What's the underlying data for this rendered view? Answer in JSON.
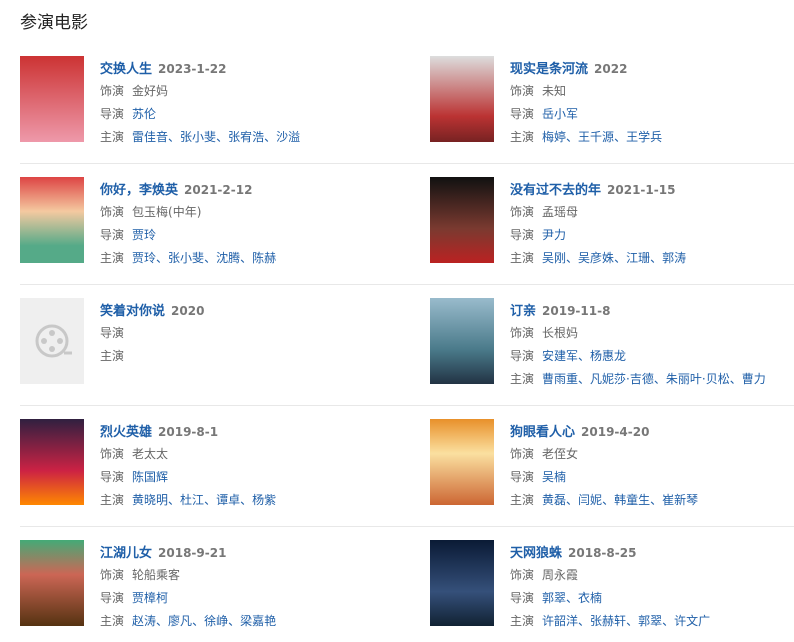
{
  "header": {
    "title": "参演电影"
  },
  "labels": {
    "role": "饰演",
    "director": "导演",
    "cast": "主演",
    "separator": "、"
  },
  "movies": [
    {
      "title": "交换人生",
      "date": "2023-1-22",
      "role": "金好妈",
      "directors": [
        "苏伦"
      ],
      "cast": [
        "雷佳音",
        "张小斐",
        "张宥浩",
        "沙溢"
      ]
    },
    {
      "title": "现实是条河流",
      "date": "2022",
      "role": "未知",
      "directors": [
        "岳小军"
      ],
      "cast": [
        "梅婷",
        "王千源",
        "王学兵"
      ]
    },
    {
      "title": "你好，李焕英",
      "date": "2021-2-12",
      "role": "包玉梅(中年)",
      "directors": [
        "贾玲"
      ],
      "cast": [
        "贾玲",
        "张小斐",
        "沈腾",
        "陈赫"
      ]
    },
    {
      "title": "没有过不去的年",
      "date": "2021-1-15",
      "role": "孟瑶母",
      "directors": [
        "尹力"
      ],
      "cast": [
        "吴刚",
        "吴彦姝",
        "江珊",
        "郭涛"
      ]
    },
    {
      "title": "笑着对你说",
      "date": "2020",
      "directors": [],
      "cast": []
    },
    {
      "title": "订亲",
      "date": "2019-11-8",
      "role": "长根妈",
      "directors": [
        "安建军",
        "杨惠龙"
      ],
      "cast": [
        "曹雨重",
        "凡妮莎·吉德",
        "朱丽叶·贝松",
        "曹力"
      ]
    },
    {
      "title": "烈火英雄",
      "date": "2019-8-1",
      "role": "老太太",
      "directors": [
        "陈国辉"
      ],
      "cast": [
        "黄晓明",
        "杜江",
        "谭卓",
        "杨紫"
      ]
    },
    {
      "title": "狗眼看人心",
      "date": "2019-4-20",
      "role": "老侄女",
      "directors": [
        "吴楠"
      ],
      "cast": [
        "黄磊",
        "闫妮",
        "韩童生",
        "崔新琴"
      ]
    },
    {
      "title": "江湖儿女",
      "date": "2018-9-21",
      "role": "轮船乘客",
      "directors": [
        "贾樟柯"
      ],
      "cast": [
        "赵涛",
        "廖凡",
        "徐峥",
        "梁嘉艳"
      ]
    },
    {
      "title": "天网狼蛛",
      "date": "2018-8-25",
      "role": "周永霞",
      "directors": [
        "郭翠",
        "衣楠"
      ],
      "cast": [
        "许韶洋",
        "张赫轩",
        "郭翠",
        "许文广"
      ]
    }
  ]
}
